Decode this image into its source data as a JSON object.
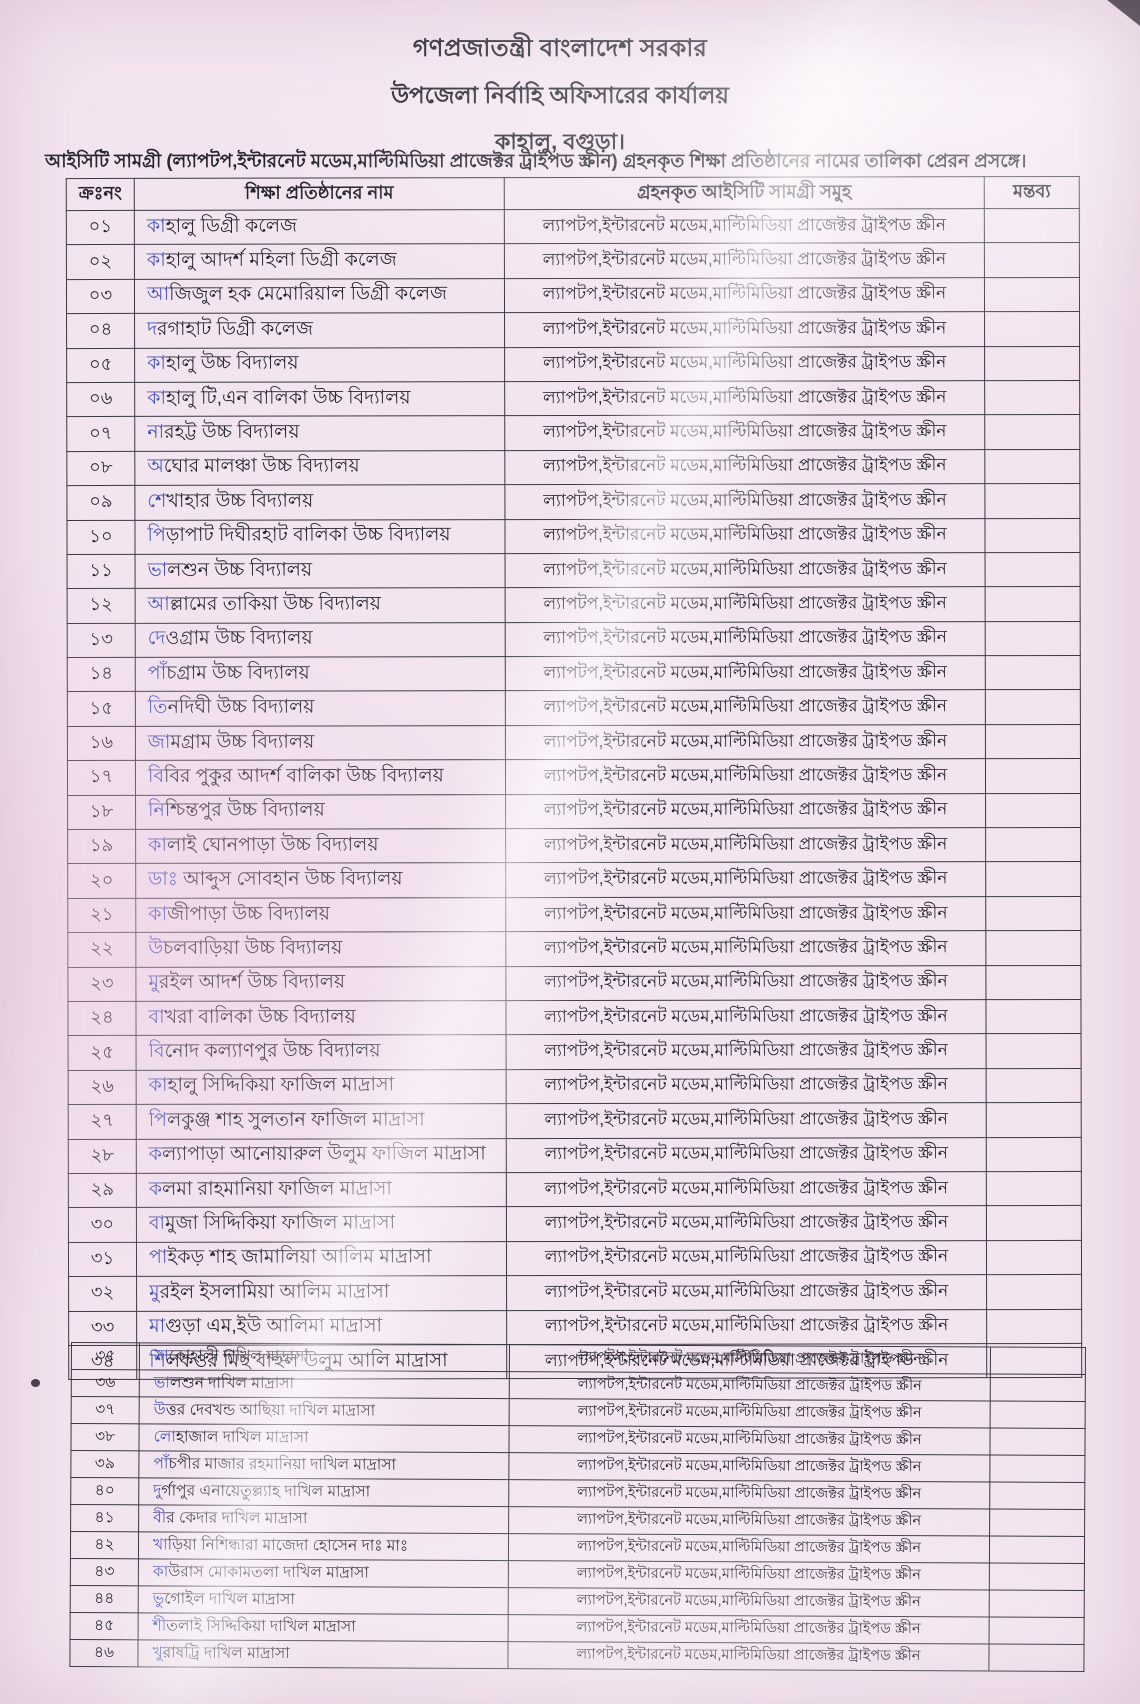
{
  "header": {
    "line1": "গণপ্রজাতন্ত্রী বাংলাদেশ সরকার",
    "line2": "উপজেলা নির্বাহি অফিসারের কার্যালয়",
    "line3": "কাহালু, বগুড়া।"
  },
  "subject": "আইসিটি সামগ্রী (ল্যাপটপ,ইন্টারনেট মডেম,মাল্টিমিডিয়া প্রাজেক্টর ট্রাইপড স্ক্রীন) গ্রহনকৃত শিক্ষা প্রতিষ্ঠানের নামের তালিকা প্রেরন প্রসঙ্গে।",
  "table": {
    "columns": [
      "ক্রঃনং",
      "শিক্ষা প্রতিষ্ঠানের নাম",
      "গ্রহনকৃত আইসিটি সামগ্রী সমুহ",
      "মন্তব্য"
    ],
    "ict_items": "ল্যাপটপ,ইন্টারনেট মডেম,মাল্টিমিডিয়া প্রাজেক্টর ট্রাইপড স্ক্রীন",
    "remark_value": "",
    "rows": [
      {
        "sl": "০১",
        "name": "কাহালু ডিগ্রী কলেজ"
      },
      {
        "sl": "০২",
        "name": "কাহালু আদর্শ মহিলা ডিগ্রী কলেজ"
      },
      {
        "sl": "০৩",
        "name": "আজিজুল হক মেমোরিয়াল ডিগ্রী কলেজ"
      },
      {
        "sl": "০৪",
        "name": "দরগাহাট ডিগ্রী কলেজ"
      },
      {
        "sl": "০৫",
        "name": "কাহালু উচ্চ বিদ্যালয়"
      },
      {
        "sl": "০৬",
        "name": "কাহালু টি,এন বালিকা উচ্চ বিদ্যালয়"
      },
      {
        "sl": "০৭",
        "name": "নারহট্ট উচ্চ বিদ্যালয়"
      },
      {
        "sl": "০৮",
        "name": "অঘোর মালঞ্চা উচ্চ বিদ্যালয়"
      },
      {
        "sl": "০৯",
        "name": "শেখাহার উচ্চ বিদ্যালয়"
      },
      {
        "sl": "১০",
        "name": "পিড়াপাট দিঘীরহাট বালিকা উচ্চ বিদ্যালয়"
      },
      {
        "sl": "১১",
        "name": "ভালশুন উচ্চ বিদ্যালয়"
      },
      {
        "sl": "১২",
        "name": "আল্লামের তাকিয়া উচ্চ বিদ্যালয়"
      },
      {
        "sl": "১৩",
        "name": "দেওগ্রাম উচ্চ বিদ্যালয়"
      },
      {
        "sl": "১৪",
        "name": "পাঁচগ্রাম উচ্চ বিদ্যালয়"
      },
      {
        "sl": "১৫",
        "name": "তিনদিঘী উচ্চ বিদ্যালয়"
      },
      {
        "sl": "১৬",
        "name": "জামগ্রাম উচ্চ বিদ্যালয়"
      },
      {
        "sl": "১৭",
        "name": "বিবির পুকুর আদর্শ বালিকা উচ্চ বিদ্যালয়"
      },
      {
        "sl": "১৮",
        "name": "নিশ্চিন্তপুর উচ্চ বিদ্যালয়"
      },
      {
        "sl": "১৯",
        "name": "কালাই ঘোনপাড়া উচ্চ বিদ্যালয়"
      },
      {
        "sl": "২০",
        "name": "ডাঃ আব্দুস সোবহান উচ্চ বিদ্যালয়"
      },
      {
        "sl": "২১",
        "name": "কাজীপাড়া উচ্চ বিদ্যালয়"
      },
      {
        "sl": "২২",
        "name": "উচলবাড়িয়া উচ্চ বিদ্যালয়"
      },
      {
        "sl": "২৩",
        "name": "মুরইল আদর্শ উচ্চ বিদ্যালয়"
      },
      {
        "sl": "২৪",
        "name": "বাখরা বালিকা উচ্চ বিদ্যালয়"
      },
      {
        "sl": "২৫",
        "name": "বিনোদ কল্যাণপুর উচ্চ বিদ্যালয়"
      },
      {
        "sl": "২৬",
        "name": "কাহালু সিদ্দিকিয়া ফাজিল মাদ্রাসা"
      },
      {
        "sl": "২৭",
        "name": "পিলকুঞ্জ শাহ সুলতান ফাজিল মাদ্রাসা"
      },
      {
        "sl": "২৮",
        "name": "কল্যাপাড়া আনোয়ারুল উলুম ফাজিল মাদ্রাসা"
      },
      {
        "sl": "২৯",
        "name": "কলমা রাহমানিয়া ফাজিল মাদ্রাসা"
      },
      {
        "sl": "৩০",
        "name": "বামুজা সিদ্দিকিয়া ফাজিল মাদ্রাসা"
      },
      {
        "sl": "৩১",
        "name": "পাইকড় শাহ জামালিয়া আলিম মাদ্রাসা"
      },
      {
        "sl": "৩২",
        "name": "মুরইল ইসলামিয়া আলিম মাদ্রাসা"
      },
      {
        "sl": "৩৩",
        "name": "মাগুড়া এম,ইউ আলিমা মাদ্রাসা"
      },
      {
        "sl": "৩৪",
        "name": "শিলকওর মিছ বাহুল উলুম আলি মাদ্রাসা"
      }
    ],
    "compact_rows": [
      {
        "sl": "৩৫",
        "name": "সাকোহালী দাখিল মাদ্রাসা"
      },
      {
        "sl": "৩৬",
        "name": "ভালশুন দাখিল মাদ্রাসা"
      },
      {
        "sl": "৩৭",
        "name": "উত্তর দেবখন্ড আছিয়া দাখিল মাদ্রাসা"
      },
      {
        "sl": "৩৮",
        "name": "লোহাজাল দাখিল মাদ্রাসা"
      },
      {
        "sl": "৩৯",
        "name": "পাঁচপীর মাজার রহমানিয়া দাখিল মাদ্রাসা"
      },
      {
        "sl": "৪০",
        "name": "দুর্গাপুর এনায়েতুল্ল্যাহ দাখিল মাদ্রাসা"
      },
      {
        "sl": "৪১",
        "name": "বীর কেদার দাখিল মাদ্রাসা"
      },
      {
        "sl": "৪২",
        "name": "খাড়িয়া নিশিন্ধারা মাজেদা হোসেন দাঃ মাঃ"
      },
      {
        "sl": "৪৩",
        "name": "কাউরাস মোকামতলা দাখিল মাদ্রাসা"
      },
      {
        "sl": "৪৪",
        "name": "ভুগোইল দাখিল মাদ্রাসা"
      },
      {
        "sl": "৪৫",
        "name": "শীতলাই সিদ্দিকিয়া দাখিল মাদ্রাসা"
      },
      {
        "sl": "৪৬",
        "name": "খুরাষট্রি দাখিল মাদ্রাসা"
      }
    ]
  },
  "colors": {
    "paper": "#f3e5f0",
    "border": "#3b3742",
    "text": "#262530",
    "ink_blue_tint": "#4652b5"
  }
}
